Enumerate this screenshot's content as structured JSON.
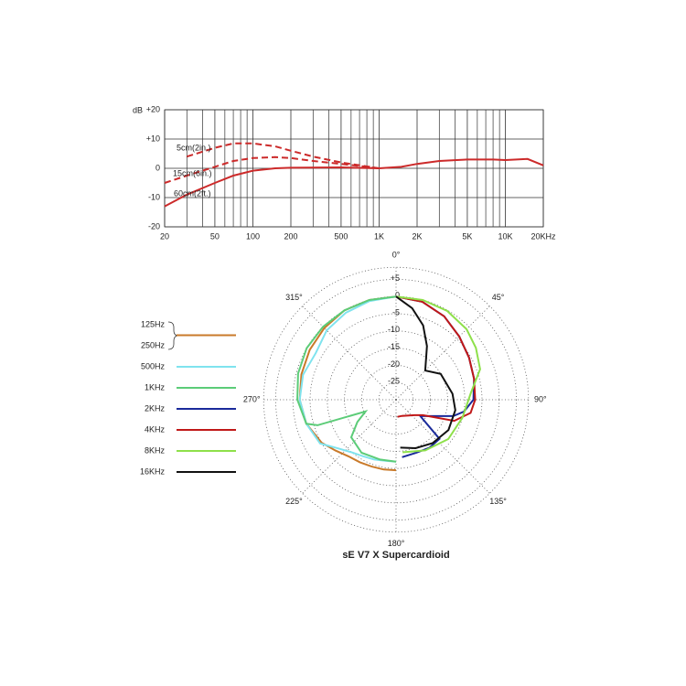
{
  "chart_data": [
    {
      "type": "line",
      "ylabel": "dB",
      "log_x": true,
      "grid": true,
      "xlim": [
        20,
        20000
      ],
      "xticks": [
        20,
        50,
        100,
        200,
        500,
        {
          "value": 1000,
          "label": "1K"
        },
        {
          "value": 2000,
          "label": "2K"
        },
        {
          "value": 5000,
          "label": "5K"
        },
        {
          "value": 10000,
          "label": "10K"
        },
        {
          "value": 20000,
          "label": "20KHz"
        }
      ],
      "minor_xgrid": [
        30,
        40,
        60,
        70,
        80,
        90,
        300,
        400,
        600,
        700,
        800,
        900,
        3000,
        4000,
        6000,
        7000,
        8000,
        9000
      ],
      "ylim": [
        -20,
        20
      ],
      "yticks": [
        -20,
        -10,
        0,
        {
          "value": 10,
          "label": "+10"
        },
        {
          "value": 20,
          "label": "+20"
        }
      ],
      "series": [
        {
          "name": "5cm(2in.)",
          "color": "#cc2a2a",
          "dashed": true,
          "x": [
            30,
            50,
            70,
            100,
            150,
            200,
            300,
            500,
            1000
          ],
          "values": [
            4,
            7,
            8.5,
            8.5,
            7.5,
            6,
            4,
            2,
            0
          ]
        },
        {
          "name": "15cm(6in.)",
          "color": "#cc2a2a",
          "dashed": true,
          "x": [
            20,
            30,
            50,
            70,
            100,
            150,
            200,
            300,
            500,
            1000
          ],
          "values": [
            -5,
            -2.5,
            0.5,
            2.5,
            3.5,
            3.8,
            3.5,
            2.5,
            1.5,
            0
          ]
        },
        {
          "name": "60cm(2ft.)",
          "color": "#cc2a2a",
          "dashed": false,
          "x": [
            20,
            30,
            50,
            70,
            100,
            150,
            200,
            500,
            1000,
            1500,
            2000,
            3000,
            5000,
            8000,
            10000,
            15000,
            20000
          ],
          "values": [
            -13,
            -9,
            -5,
            -2.5,
            -0.8,
            0,
            0.2,
            0.3,
            0,
            0.5,
            1.5,
            2.5,
            3,
            3,
            2.8,
            3.2,
            1
          ]
        }
      ]
    },
    {
      "type": "polar",
      "title": "sE V7 X  Supercardioid",
      "rlim": [
        -30,
        8.5
      ],
      "rticks": [
        {
          "value": 5,
          "label": "+5"
        },
        0,
        -5,
        -10,
        -15,
        -20,
        -25
      ],
      "thetaticks": [
        {
          "value": 0,
          "label": "0°"
        },
        {
          "value": 45,
          "label": "45°"
        },
        {
          "value": 90,
          "label": "90°"
        },
        {
          "value": 135,
          "label": "135°"
        },
        {
          "value": 180,
          "label": "180°"
        },
        {
          "value": 225,
          "label": "225°"
        },
        {
          "value": 270,
          "label": "270°"
        },
        {
          "value": 315,
          "label": "315°"
        }
      ],
      "series": [
        {
          "name": [
            "125Hz",
            "250Hz"
          ],
          "color": "#c97a2a",
          "theta": [
            360,
            345,
            330,
            315,
            300,
            285,
            270,
            255,
            240,
            230,
            220,
            210,
            200,
            190,
            180
          ],
          "values": [
            0,
            0,
            0,
            -0.5,
            -1,
            -1.5,
            -2,
            -3,
            -5,
            -7,
            -8.5,
            -9,
            -9.3,
            -9.4,
            -9.5
          ]
        },
        {
          "name": "500Hz",
          "color": "#7fe3ee",
          "theta": [
            360,
            345,
            330,
            315,
            300,
            285,
            270,
            255,
            240,
            230,
            220,
            210,
            200,
            190,
            180
          ],
          "values": [
            0,
            -0.3,
            -0.8,
            -1.5,
            -3,
            -2,
            -2,
            -3,
            -4.5,
            -8,
            -10,
            -11,
            -11.5,
            -12,
            -12
          ]
        },
        {
          "name": "1KHz",
          "color": "#5ccc78",
          "theta": [
            360,
            345,
            330,
            315,
            300,
            285,
            270,
            255,
            252,
            249,
            240,
            230,
            213,
            195,
            180
          ],
          "values": [
            0,
            0,
            0,
            0,
            0,
            -0.5,
            -1.3,
            -3,
            -6,
            -20.5,
            -17,
            -13,
            -11.6,
            -12,
            -12
          ]
        },
        {
          "name": "2KHz",
          "color": "#1a2a9a",
          "theta": [
            0,
            15,
            30,
            45,
            60,
            75,
            90,
            100,
            106,
            124,
            132,
            145,
            159,
            174
          ],
          "values": [
            0,
            -0.5,
            -2,
            -4,
            -5.5,
            -6.5,
            -7.5,
            -10,
            -12.7,
            -21.5,
            -13,
            -13,
            -13.5,
            -13.2
          ]
        },
        {
          "name": "4KHz",
          "color": "#c01818",
          "theta": [
            0,
            15,
            30,
            45,
            60,
            75,
            90,
            100,
            110,
            120,
            130,
            160,
            175
          ],
          "values": [
            0,
            -0.5,
            -2,
            -4,
            -5.5,
            -6.5,
            -7,
            -8,
            -12,
            -21,
            -23,
            -25,
            -25
          ]
        },
        {
          "name": "8KHz",
          "color": "#8ee04a",
          "theta": [
            0,
            15,
            30,
            45,
            57,
            70,
            85,
            105,
            127,
            150,
            173
          ],
          "values": [
            0,
            0,
            -0.2,
            -1,
            -2.3,
            -4,
            -8.2,
            -10,
            -11,
            -13,
            -14.6
          ]
        },
        {
          "name": "16KHz",
          "color": "#111111",
          "theta": [
            0,
            10,
            20,
            30,
            45,
            60,
            84,
            100,
            120,
            140,
            158,
            175
          ],
          "values": [
            0,
            -3,
            -7,
            -12,
            -18,
            -15,
            -13.5,
            -12.5,
            -12.4,
            -13.5,
            -14.8,
            -16
          ]
        }
      ]
    }
  ]
}
